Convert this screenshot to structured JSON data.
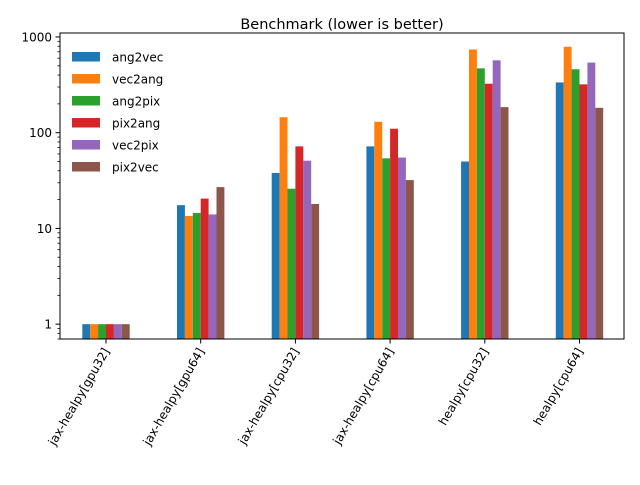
{
  "chart_data": {
    "type": "bar",
    "title": "Benchmark (lower is better)",
    "xlabel": "",
    "ylabel": "",
    "yscale": "log",
    "ylim": [
      0.7,
      1100
    ],
    "yticks": [
      {
        "value": 1,
        "label": "1"
      },
      {
        "value": 10,
        "label": "10"
      },
      {
        "value": 100,
        "label": "100"
      },
      {
        "value": 1000,
        "label": "1000"
      }
    ],
    "categories": [
      "jax-healpy[gpu32]",
      "jax-healpy[gpu64]",
      "jax-healpy[cpu32]",
      "jax-healpy[cpu64]",
      "healpy[cpu32]",
      "healpy[cpu64]"
    ],
    "grid": false,
    "legend": "top-left",
    "series": [
      {
        "name": "ang2vec",
        "color": "#1f77b4",
        "values": [
          1,
          17.5,
          38,
          72,
          50,
          335
        ]
      },
      {
        "name": "vec2ang",
        "color": "#ff7f0e",
        "values": [
          1,
          13.5,
          145,
          130,
          740,
          790
        ]
      },
      {
        "name": "ang2pix",
        "color": "#2ca02c",
        "values": [
          1,
          14.5,
          26,
          54,
          470,
          460
        ]
      },
      {
        "name": "pix2ang",
        "color": "#d62728",
        "values": [
          1,
          20.5,
          72,
          110,
          325,
          320
        ]
      },
      {
        "name": "vec2pix",
        "color": "#9467bd",
        "values": [
          1,
          14,
          51,
          55,
          570,
          540
        ]
      },
      {
        "name": "pix2vec",
        "color": "#8c564b",
        "values": [
          1,
          27,
          18,
          32,
          185,
          182
        ]
      }
    ]
  }
}
